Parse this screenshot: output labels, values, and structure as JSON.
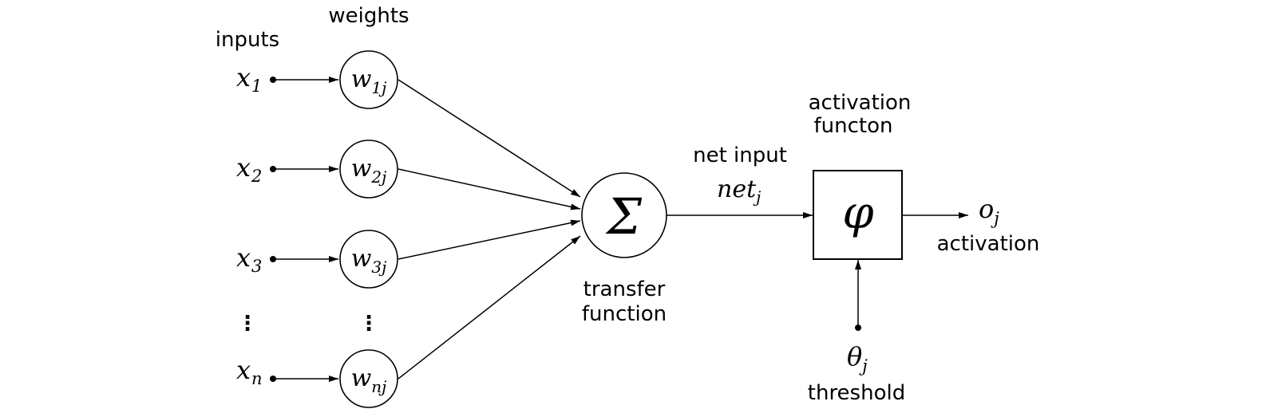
{
  "labels": {
    "inputs": "inputs",
    "weights": "weights",
    "transfer_line1": "transfer",
    "transfer_line2": "function",
    "net_input": "net input",
    "activation_fn_line1": "activation",
    "activation_fn_line2": "functon",
    "activation": "activation",
    "threshold": "threshold"
  },
  "inputs": [
    {
      "base": "x",
      "sub": "1"
    },
    {
      "base": "x",
      "sub": "2"
    },
    {
      "base": "x",
      "sub": "3"
    },
    {
      "base": "x",
      "sub": "n"
    }
  ],
  "weights": [
    {
      "base": "w",
      "sub": "1j"
    },
    {
      "base": "w",
      "sub": "2j"
    },
    {
      "base": "w",
      "sub": "3j"
    },
    {
      "base": "w",
      "sub": "nj"
    }
  ],
  "ellipsis": "⋮",
  "sum_symbol": "Σ",
  "net": {
    "base": "net",
    "sub": "j"
  },
  "phi_symbol": "φ",
  "output": {
    "base": "o",
    "sub": "j"
  },
  "theta": {
    "base": "θ",
    "sub": "j"
  }
}
